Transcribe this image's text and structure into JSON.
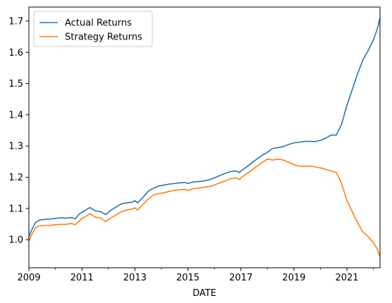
{
  "chart_data": {
    "type": "line",
    "xlabel": "DATE",
    "ylabel": "",
    "title": "",
    "xlim": [
      2009.0,
      2022.25
    ],
    "ylim": [
      0.91,
      1.745
    ],
    "x_ticks": [
      2009,
      2011,
      2013,
      2015,
      2017,
      2019,
      2021
    ],
    "x_tick_labels": [
      "2009",
      "2011",
      "2013",
      "2015",
      "2017",
      "2019",
      "2021"
    ],
    "x_minor_ticks": [
      2010,
      2012,
      2014,
      2016,
      2018,
      2020,
      2022
    ],
    "y_ticks": [
      1.0,
      1.1,
      1.2,
      1.3,
      1.4,
      1.5,
      1.6,
      1.7
    ],
    "y_tick_labels": [
      "1.0",
      "1.1",
      "1.2",
      "1.3",
      "1.4",
      "1.5",
      "1.6",
      "1.7"
    ],
    "grid": false,
    "legend": {
      "placement": "top-left",
      "entries": [
        "Actual Returns",
        "Strategy Returns"
      ]
    },
    "colors": {
      "actual": "#1f77b4",
      "strategy": "#ff7f0e"
    },
    "series": [
      {
        "name": "Actual Returns",
        "x": [
          2009.0,
          2009.1,
          2009.25,
          2009.4,
          2009.6,
          2009.8,
          2010.0,
          2010.2,
          2010.4,
          2010.6,
          2010.75,
          2010.9,
          2011.0,
          2011.15,
          2011.3,
          2011.5,
          2011.7,
          2011.9,
          2012.1,
          2012.3,
          2012.5,
          2012.7,
          2012.9,
          2013.0,
          2013.1,
          2013.3,
          2013.5,
          2013.7,
          2013.9,
          2014.1,
          2014.3,
          2014.5,
          2014.7,
          2014.9,
          2015.0,
          2015.2,
          2015.4,
          2015.6,
          2015.8,
          2016.0,
          2016.2,
          2016.4,
          2016.6,
          2016.8,
          2016.95,
          2017.0,
          2017.2,
          2017.4,
          2017.6,
          2017.8,
          2018.0,
          2018.2,
          2018.4,
          2018.6,
          2018.8,
          2019.0,
          2019.2,
          2019.4,
          2019.6,
          2019.8,
          2020.0,
          2020.2,
          2020.4,
          2020.6,
          2020.8,
          2021.0,
          2021.2,
          2021.4,
          2021.6,
          2021.8,
          2022.0,
          2022.15,
          2022.25
        ],
        "values": [
          1.01,
          1.03,
          1.055,
          1.063,
          1.065,
          1.066,
          1.068,
          1.07,
          1.069,
          1.071,
          1.067,
          1.082,
          1.088,
          1.095,
          1.103,
          1.092,
          1.09,
          1.08,
          1.095,
          1.105,
          1.115,
          1.118,
          1.12,
          1.125,
          1.118,
          1.135,
          1.155,
          1.165,
          1.172,
          1.175,
          1.178,
          1.18,
          1.182,
          1.183,
          1.18,
          1.185,
          1.186,
          1.188,
          1.192,
          1.198,
          1.205,
          1.212,
          1.218,
          1.22,
          1.215,
          1.22,
          1.232,
          1.245,
          1.258,
          1.27,
          1.28,
          1.292,
          1.295,
          1.298,
          1.305,
          1.31,
          1.312,
          1.315,
          1.315,
          1.314,
          1.318,
          1.325,
          1.335,
          1.335,
          1.37,
          1.43,
          1.48,
          1.53,
          1.575,
          1.605,
          1.64,
          1.675,
          1.71
        ]
      },
      {
        "name": "Strategy Returns",
        "x": [
          2009.0,
          2009.1,
          2009.25,
          2009.4,
          2009.6,
          2009.8,
          2010.0,
          2010.2,
          2010.4,
          2010.6,
          2010.75,
          2010.9,
          2011.0,
          2011.15,
          2011.3,
          2011.5,
          2011.7,
          2011.9,
          2012.1,
          2012.3,
          2012.5,
          2012.7,
          2012.9,
          2013.0,
          2013.1,
          2013.3,
          2013.5,
          2013.7,
          2013.9,
          2014.1,
          2014.3,
          2014.5,
          2014.7,
          2014.9,
          2015.0,
          2015.2,
          2015.4,
          2015.6,
          2015.8,
          2016.0,
          2016.2,
          2016.4,
          2016.6,
          2016.8,
          2016.95,
          2017.0,
          2017.2,
          2017.4,
          2017.6,
          2017.8,
          2018.0,
          2018.2,
          2018.4,
          2018.6,
          2018.8,
          2019.0,
          2019.2,
          2019.4,
          2019.6,
          2019.8,
          2020.0,
          2020.2,
          2020.4,
          2020.6,
          2020.8,
          2021.0,
          2021.2,
          2021.4,
          2021.6,
          2021.8,
          2022.0,
          2022.15,
          2022.25
        ],
        "values": [
          0.995,
          1.015,
          1.038,
          1.044,
          1.046,
          1.046,
          1.048,
          1.049,
          1.049,
          1.052,
          1.048,
          1.06,
          1.068,
          1.075,
          1.083,
          1.072,
          1.07,
          1.058,
          1.07,
          1.08,
          1.09,
          1.095,
          1.098,
          1.102,
          1.095,
          1.112,
          1.13,
          1.143,
          1.148,
          1.15,
          1.155,
          1.158,
          1.16,
          1.161,
          1.158,
          1.163,
          1.165,
          1.168,
          1.17,
          1.175,
          1.182,
          1.188,
          1.195,
          1.198,
          1.192,
          1.198,
          1.21,
          1.222,
          1.235,
          1.247,
          1.258,
          1.255,
          1.258,
          1.255,
          1.248,
          1.24,
          1.236,
          1.235,
          1.236,
          1.233,
          1.23,
          1.225,
          1.22,
          1.215,
          1.18,
          1.125,
          1.09,
          1.055,
          1.025,
          1.01,
          0.99,
          0.97,
          0.945
        ]
      }
    ]
  }
}
